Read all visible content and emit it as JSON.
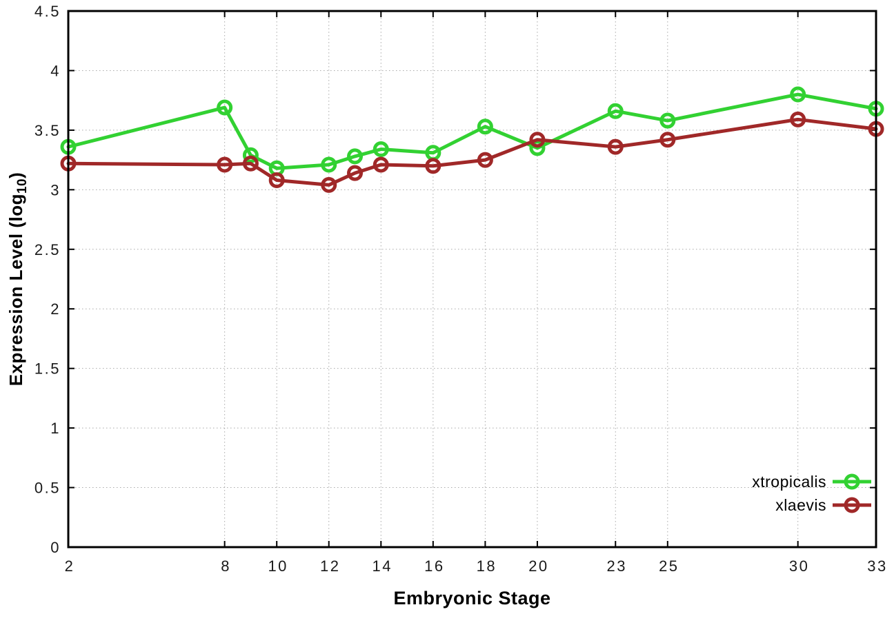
{
  "chart_data": {
    "type": "line",
    "title": "",
    "xlabel": "Embryonic Stage",
    "ylabel": {
      "prefix": "Expression Level (log",
      "sub": "10",
      "suffix": ")"
    },
    "xlim": [
      2,
      33
    ],
    "ylim": [
      0,
      4.5
    ],
    "grid": true,
    "legend_position": "bottom-right",
    "x": [
      2,
      8,
      9,
      10,
      12,
      13,
      14,
      16,
      18,
      20,
      23,
      25,
      30,
      33
    ],
    "series": [
      {
        "name": "xtropicalis",
        "color": "#32d132",
        "values": [
          3.36,
          3.69,
          3.29,
          3.18,
          3.21,
          3.28,
          3.34,
          3.31,
          3.53,
          3.35,
          3.66,
          3.58,
          3.8,
          3.68
        ]
      },
      {
        "name": "xlaevis",
        "color": "#a02828",
        "values": [
          3.22,
          3.21,
          3.22,
          3.08,
          3.04,
          3.14,
          3.21,
          3.2,
          3.25,
          3.42,
          3.36,
          3.42,
          3.59,
          3.51
        ]
      }
    ],
    "xtick_values": [
      2,
      8,
      10,
      12,
      14,
      16,
      18,
      20,
      23,
      25,
      30,
      33
    ],
    "xtick_labels": [
      "2",
      "8",
      "10",
      "12",
      "14",
      "16",
      "18",
      "20",
      "23",
      "25",
      "30",
      "33"
    ],
    "ytick_values": [
      0,
      0.5,
      1,
      1.5,
      2,
      2.5,
      3,
      3.5,
      4,
      4.5
    ],
    "ytick_labels": [
      "0",
      "0.5",
      "1",
      "1.5",
      "2",
      "2.5",
      "3",
      "3.5",
      "4",
      "4.5"
    ],
    "colors": {
      "background": "#ffffff",
      "border": "#000000",
      "grid": "#a8a8a8",
      "tick_text": "#1a1a1a",
      "legend_text": "#000000"
    }
  }
}
